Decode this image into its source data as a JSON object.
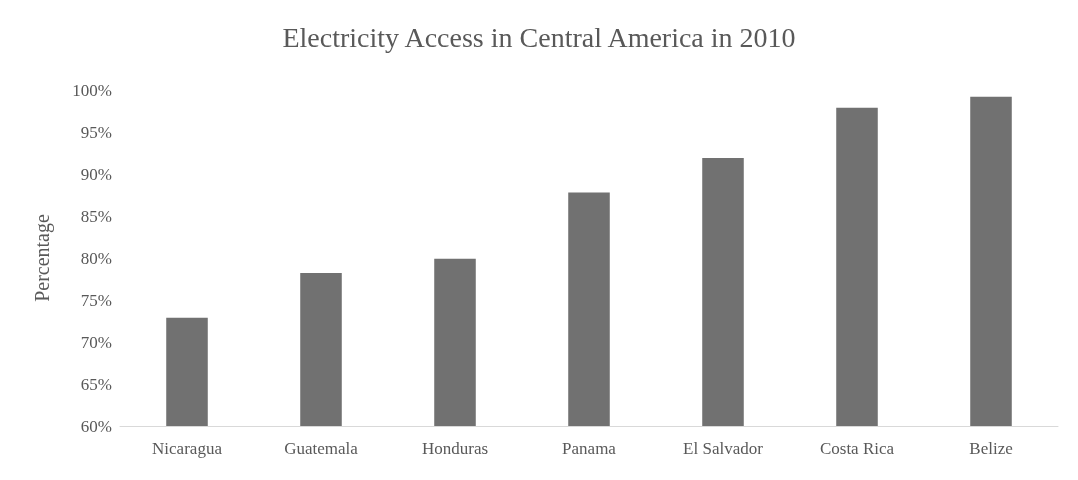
{
  "chart_data": {
    "type": "bar",
    "title": "Electricity Access in Central America in 2010",
    "ylabel": "Percentage",
    "categories": [
      "Nicaragua",
      "Guatemala",
      "Honduras",
      "Panama",
      "El Salvador",
      "Costa Rica",
      "Belize"
    ],
    "values": [
      72.9,
      78.2,
      79.9,
      87.8,
      91.9,
      97.9,
      99.2
    ],
    "color": "#717171",
    "ylim": [
      60,
      100
    ],
    "yticks": [
      {
        "value": 60,
        "label": "60%"
      },
      {
        "value": 65,
        "label": "65%"
      },
      {
        "value": 70,
        "label": "70%"
      },
      {
        "value": 75,
        "label": "75%"
      },
      {
        "value": 80,
        "label": "80%"
      },
      {
        "value": 85,
        "label": "85%"
      },
      {
        "value": 90,
        "label": "90%"
      },
      {
        "value": 95,
        "label": "95%"
      },
      {
        "value": 100,
        "label": "100%"
      }
    ],
    "grid": false
  }
}
